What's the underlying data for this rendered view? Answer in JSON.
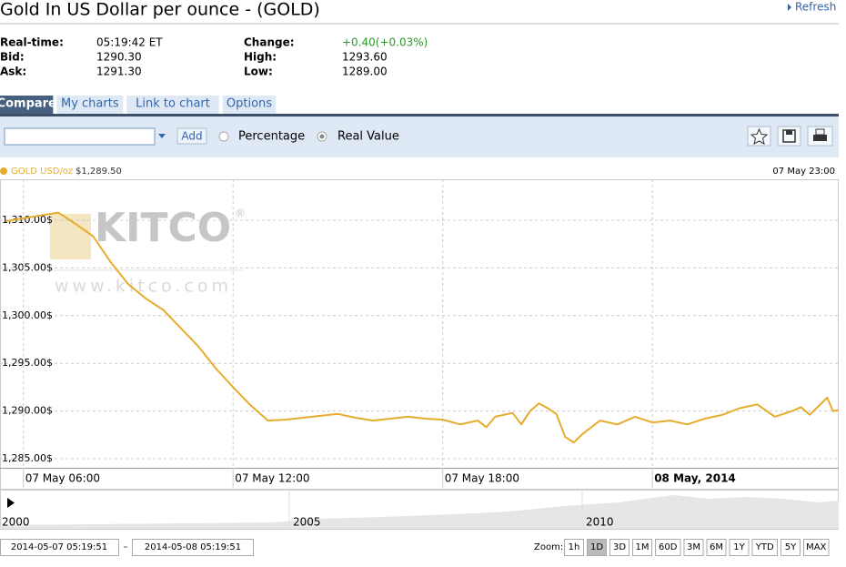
{
  "header": {
    "title": "Gold In US Dollar per ounce - (GOLD)",
    "refresh": "Refresh"
  },
  "quote": {
    "rows": [
      [
        "Real-time:",
        "05:19:42 ET",
        "Change:",
        "+0.40(+0.03%)"
      ],
      [
        "Bid:",
        "1290.30",
        "High:",
        "1293.60"
      ],
      [
        "Ask:",
        "1291.30",
        "Low:",
        "1289.00"
      ]
    ]
  },
  "tabs": [
    "Compare",
    "My charts",
    "Link to chart",
    "Options"
  ],
  "toolbar": {
    "add": "Add",
    "options": [
      "Percentage",
      "Real Value"
    ]
  },
  "chart_data": {
    "type": "line",
    "legend_price": "$1,289.50",
    "last_time": "07 May 23:00",
    "x": [
      "2014-05-07 05:30",
      "2014-05-07 06:00",
      "2014-05-07 06:30",
      "2014-05-07 07:00",
      "2014-05-07 07:30",
      "2014-05-07 08:00",
      "2014-05-07 08:30",
      "2014-05-07 09:00",
      "2014-05-07 09:30",
      "2014-05-07 10:00",
      "2014-05-07 10:30",
      "2014-05-07 11:00",
      "2014-05-07 11:30",
      "2014-05-07 12:00",
      "2014-05-07 12:30",
      "2014-05-07 13:00",
      "2014-05-07 13:30",
      "2014-05-07 14:00",
      "2014-05-07 14:30",
      "2014-05-07 15:00",
      "2014-05-07 15:30",
      "2014-05-07 16:00",
      "2014-05-07 16:30",
      "2014-05-07 17:00",
      "2014-05-07 17:30",
      "2014-05-07 18:00",
      "2014-05-07 18:30",
      "2014-05-07 19:00",
      "2014-05-07 19:15",
      "2014-05-07 19:30",
      "2014-05-07 20:00",
      "2014-05-07 20:15",
      "2014-05-07 20:30",
      "2014-05-07 20:45",
      "2014-05-07 21:00",
      "2014-05-07 21:15",
      "2014-05-07 21:30",
      "2014-05-07 21:45",
      "2014-05-07 22:00",
      "2014-05-07 22:30",
      "2014-05-07 23:00",
      "2014-05-07 23:30",
      "2014-05-08 00:00",
      "2014-05-08 00:30",
      "2014-05-08 01:00",
      "2014-05-08 01:30",
      "2014-05-08 02:00",
      "2014-05-08 02:30",
      "2014-05-08 03:00",
      "2014-05-08 03:30",
      "2014-05-08 04:00",
      "2014-05-08 04:15",
      "2014-05-08 04:30",
      "2014-05-08 04:45",
      "2014-05-08 05:00",
      "2014-05-08 05:10",
      "2014-05-08 05:19"
    ],
    "series": [
      {
        "name": "GOLD USD/oz",
        "color": "#e6ac2c",
        "values": [
          1309.9,
          1310.2,
          1310.5,
          1310.8,
          1309.6,
          1308.3,
          1305.6,
          1303.3,
          1301.8,
          1300.6,
          1298.7,
          1296.8,
          1294.5,
          1292.5,
          1290.6,
          1289.0,
          1289.1,
          1289.3,
          1289.5,
          1289.7,
          1289.3,
          1289.0,
          1289.2,
          1289.4,
          1289.2,
          1289.1,
          1288.6,
          1289.0,
          1288.3,
          1289.4,
          1289.8,
          1288.6,
          1290.0,
          1290.8,
          1290.3,
          1289.7,
          1287.3,
          1286.7,
          1287.6,
          1289.0,
          1288.6,
          1289.4,
          1288.8,
          1289.0,
          1288.6,
          1289.2,
          1289.6,
          1290.3,
          1290.7,
          1289.4,
          1290.0,
          1290.4,
          1289.6,
          1290.5,
          1291.4,
          1290.0,
          1290.1
        ]
      }
    ],
    "xlim": [
      "2014-05-07 05:19:51",
      "2014-05-08 05:19:51"
    ],
    "xticks": [
      {
        "value": "2014-05-07 06:00",
        "label": "07 May 06:00"
      },
      {
        "value": "2014-05-07 12:00",
        "label": "07 May 12:00"
      },
      {
        "value": "2014-05-07 18:00",
        "label": "07 May 18:00"
      },
      {
        "value": "2014-05-08 00:00",
        "label": "08 May, 2014",
        "bold": true
      }
    ],
    "ylim": [
      1284.05,
      1314.29
    ],
    "yticks": [
      {
        "value": 1285,
        "label": "1,285.00$"
      },
      {
        "value": 1290,
        "label": "1,290.00$"
      },
      {
        "value": 1295,
        "label": "1,295.00$"
      },
      {
        "value": 1300,
        "label": "1,300.00$"
      },
      {
        "value": 1305,
        "label": "1,305.00$"
      },
      {
        "value": 1310,
        "label": "1,310.00$"
      }
    ],
    "grid": true
  },
  "navigator": {
    "labels": [
      "2000",
      "2005",
      "2010"
    ]
  },
  "watermark": {
    "logo": "KITCO",
    "mark": "®",
    "url": "www.kitco.com"
  },
  "zoom": {
    "label": "Zoom:",
    "buttons": [
      "1h",
      "1D",
      "3D",
      "1M",
      "60D",
      "3M",
      "6M",
      "1Y",
      "YTD",
      "5Y",
      "MAX"
    ],
    "active": "1D"
  }
}
